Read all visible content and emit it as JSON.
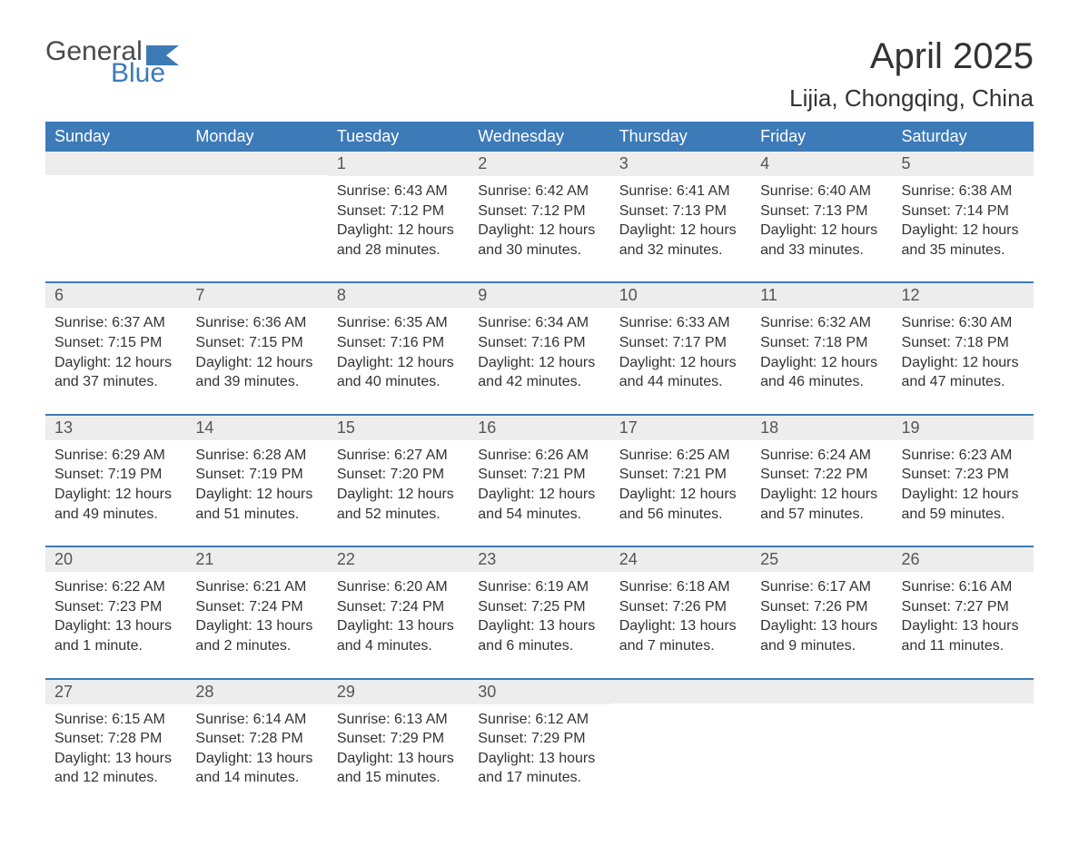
{
  "logo": {
    "text1": "General",
    "text2": "Blue",
    "flag_color": "#3d7ab8",
    "text1_color": "#4a4a4a"
  },
  "title": "April 2025",
  "location": "Lijia, Chongqing, China",
  "colors": {
    "header_bg": "#3d7ab8",
    "header_text": "#ffffff",
    "daynum_bg": "#ededed",
    "daynum_text": "#555555",
    "body_text": "#333333",
    "row_border": "#3d7ab8",
    "page_bg": "#ffffff"
  },
  "typography": {
    "title_fontsize": 40,
    "location_fontsize": 26,
    "header_fontsize": 18,
    "daynum_fontsize": 18,
    "content_fontsize": 16,
    "font_family": "Arial"
  },
  "calendar": {
    "type": "table",
    "columns": [
      "Sunday",
      "Monday",
      "Tuesday",
      "Wednesday",
      "Thursday",
      "Friday",
      "Saturday"
    ],
    "weeks": [
      [
        null,
        null,
        {
          "d": "1",
          "sr": "Sunrise: 6:43 AM",
          "ss": "Sunset: 7:12 PM",
          "dl1": "Daylight: 12 hours",
          "dl2": "and 28 minutes."
        },
        {
          "d": "2",
          "sr": "Sunrise: 6:42 AM",
          "ss": "Sunset: 7:12 PM",
          "dl1": "Daylight: 12 hours",
          "dl2": "and 30 minutes."
        },
        {
          "d": "3",
          "sr": "Sunrise: 6:41 AM",
          "ss": "Sunset: 7:13 PM",
          "dl1": "Daylight: 12 hours",
          "dl2": "and 32 minutes."
        },
        {
          "d": "4",
          "sr": "Sunrise: 6:40 AM",
          "ss": "Sunset: 7:13 PM",
          "dl1": "Daylight: 12 hours",
          "dl2": "and 33 minutes."
        },
        {
          "d": "5",
          "sr": "Sunrise: 6:38 AM",
          "ss": "Sunset: 7:14 PM",
          "dl1": "Daylight: 12 hours",
          "dl2": "and 35 minutes."
        }
      ],
      [
        {
          "d": "6",
          "sr": "Sunrise: 6:37 AM",
          "ss": "Sunset: 7:15 PM",
          "dl1": "Daylight: 12 hours",
          "dl2": "and 37 minutes."
        },
        {
          "d": "7",
          "sr": "Sunrise: 6:36 AM",
          "ss": "Sunset: 7:15 PM",
          "dl1": "Daylight: 12 hours",
          "dl2": "and 39 minutes."
        },
        {
          "d": "8",
          "sr": "Sunrise: 6:35 AM",
          "ss": "Sunset: 7:16 PM",
          "dl1": "Daylight: 12 hours",
          "dl2": "and 40 minutes."
        },
        {
          "d": "9",
          "sr": "Sunrise: 6:34 AM",
          "ss": "Sunset: 7:16 PM",
          "dl1": "Daylight: 12 hours",
          "dl2": "and 42 minutes."
        },
        {
          "d": "10",
          "sr": "Sunrise: 6:33 AM",
          "ss": "Sunset: 7:17 PM",
          "dl1": "Daylight: 12 hours",
          "dl2": "and 44 minutes."
        },
        {
          "d": "11",
          "sr": "Sunrise: 6:32 AM",
          "ss": "Sunset: 7:18 PM",
          "dl1": "Daylight: 12 hours",
          "dl2": "and 46 minutes."
        },
        {
          "d": "12",
          "sr": "Sunrise: 6:30 AM",
          "ss": "Sunset: 7:18 PM",
          "dl1": "Daylight: 12 hours",
          "dl2": "and 47 minutes."
        }
      ],
      [
        {
          "d": "13",
          "sr": "Sunrise: 6:29 AM",
          "ss": "Sunset: 7:19 PM",
          "dl1": "Daylight: 12 hours",
          "dl2": "and 49 minutes."
        },
        {
          "d": "14",
          "sr": "Sunrise: 6:28 AM",
          "ss": "Sunset: 7:19 PM",
          "dl1": "Daylight: 12 hours",
          "dl2": "and 51 minutes."
        },
        {
          "d": "15",
          "sr": "Sunrise: 6:27 AM",
          "ss": "Sunset: 7:20 PM",
          "dl1": "Daylight: 12 hours",
          "dl2": "and 52 minutes."
        },
        {
          "d": "16",
          "sr": "Sunrise: 6:26 AM",
          "ss": "Sunset: 7:21 PM",
          "dl1": "Daylight: 12 hours",
          "dl2": "and 54 minutes."
        },
        {
          "d": "17",
          "sr": "Sunrise: 6:25 AM",
          "ss": "Sunset: 7:21 PM",
          "dl1": "Daylight: 12 hours",
          "dl2": "and 56 minutes."
        },
        {
          "d": "18",
          "sr": "Sunrise: 6:24 AM",
          "ss": "Sunset: 7:22 PM",
          "dl1": "Daylight: 12 hours",
          "dl2": "and 57 minutes."
        },
        {
          "d": "19",
          "sr": "Sunrise: 6:23 AM",
          "ss": "Sunset: 7:23 PM",
          "dl1": "Daylight: 12 hours",
          "dl2": "and 59 minutes."
        }
      ],
      [
        {
          "d": "20",
          "sr": "Sunrise: 6:22 AM",
          "ss": "Sunset: 7:23 PM",
          "dl1": "Daylight: 13 hours",
          "dl2": "and 1 minute."
        },
        {
          "d": "21",
          "sr": "Sunrise: 6:21 AM",
          "ss": "Sunset: 7:24 PM",
          "dl1": "Daylight: 13 hours",
          "dl2": "and 2 minutes."
        },
        {
          "d": "22",
          "sr": "Sunrise: 6:20 AM",
          "ss": "Sunset: 7:24 PM",
          "dl1": "Daylight: 13 hours",
          "dl2": "and 4 minutes."
        },
        {
          "d": "23",
          "sr": "Sunrise: 6:19 AM",
          "ss": "Sunset: 7:25 PM",
          "dl1": "Daylight: 13 hours",
          "dl2": "and 6 minutes."
        },
        {
          "d": "24",
          "sr": "Sunrise: 6:18 AM",
          "ss": "Sunset: 7:26 PM",
          "dl1": "Daylight: 13 hours",
          "dl2": "and 7 minutes."
        },
        {
          "d": "25",
          "sr": "Sunrise: 6:17 AM",
          "ss": "Sunset: 7:26 PM",
          "dl1": "Daylight: 13 hours",
          "dl2": "and 9 minutes."
        },
        {
          "d": "26",
          "sr": "Sunrise: 6:16 AM",
          "ss": "Sunset: 7:27 PM",
          "dl1": "Daylight: 13 hours",
          "dl2": "and 11 minutes."
        }
      ],
      [
        {
          "d": "27",
          "sr": "Sunrise: 6:15 AM",
          "ss": "Sunset: 7:28 PM",
          "dl1": "Daylight: 13 hours",
          "dl2": "and 12 minutes."
        },
        {
          "d": "28",
          "sr": "Sunrise: 6:14 AM",
          "ss": "Sunset: 7:28 PM",
          "dl1": "Daylight: 13 hours",
          "dl2": "and 14 minutes."
        },
        {
          "d": "29",
          "sr": "Sunrise: 6:13 AM",
          "ss": "Sunset: 7:29 PM",
          "dl1": "Daylight: 13 hours",
          "dl2": "and 15 minutes."
        },
        {
          "d": "30",
          "sr": "Sunrise: 6:12 AM",
          "ss": "Sunset: 7:29 PM",
          "dl1": "Daylight: 13 hours",
          "dl2": "and 17 minutes."
        },
        null,
        null,
        null
      ]
    ]
  }
}
